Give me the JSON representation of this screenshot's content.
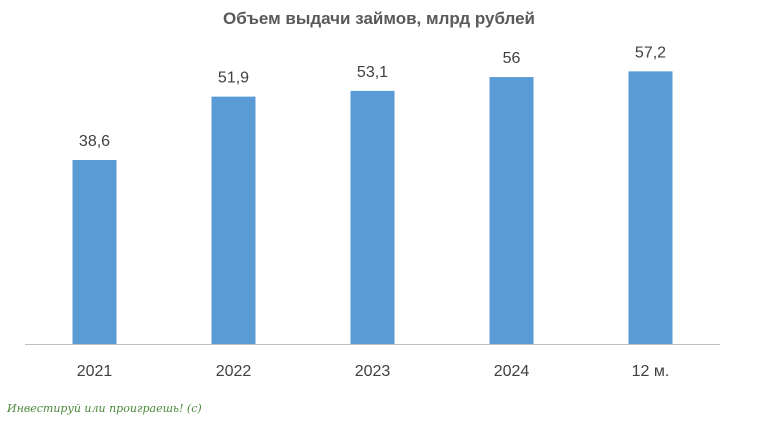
{
  "chart_data": {
    "type": "bar",
    "title": "Объем выдачи займов, млрд рублей",
    "categories": [
      "2021",
      "2022",
      "2023",
      "2024",
      "12 м."
    ],
    "values": [
      38.6,
      51.9,
      53.1,
      56,
      57.2
    ],
    "value_labels": [
      "38,6",
      "51,9",
      "53,1",
      "56",
      "57,2"
    ],
    "xlabel": "",
    "ylabel": "",
    "ylim": [
      0,
      60
    ],
    "grid": false,
    "bar_color": "#5b9bd5"
  },
  "footer": {
    "watermark": "Инвестируй или проиграешь! (с)"
  }
}
